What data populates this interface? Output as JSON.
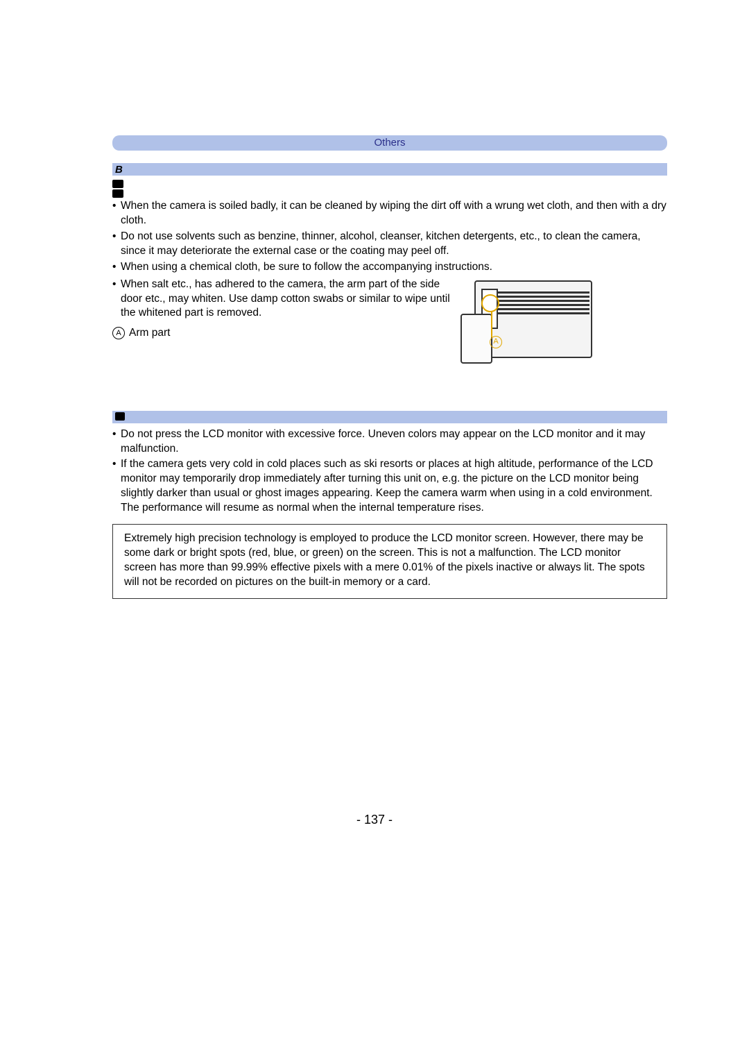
{
  "header": {
    "tab": "Others"
  },
  "section1": {
    "items": [
      "When the camera is soiled badly, it can be cleaned by wiping the dirt off with a wrung wet cloth, and then with a dry cloth.",
      "Do not use solvents such as benzine, thinner, alcohol, cleanser, kitchen detergents, etc., to clean the camera, since it may deteriorate the external case or the coating may peel off.",
      "When using a chemical cloth, be sure to follow the accompanying instructions."
    ],
    "salt_item": "When salt etc., has adhered to the camera, the arm part of the side door etc., may whiten. Use damp cotton swabs or similar to wipe until the whitened part is removed.",
    "arm_letter": "A",
    "arm_label": "Arm part",
    "diagram_callout": "A"
  },
  "section2": {
    "items": [
      "Do not press the LCD monitor with excessive force. Uneven colors may appear on the LCD monitor and it may malfunction.",
      "If the camera gets very cold in cold places such as ski resorts or places at high altitude, performance of the LCD monitor may temporarily drop immediately after turning this unit on, e.g. the picture on the LCD monitor being slightly darker than usual or ghost images appearing. Keep the camera warm when using in a cold environment. The performance will resume as normal when the internal temperature rises."
    ],
    "precision": "Extremely high precision technology is employed to produce the LCD monitor screen. However, there may be some dark or bright spots (red, blue, or green) on the screen. This is not a malfunction. The LCD monitor screen has more than 99.99% effective pixels with a mere 0.01% of the pixels inactive or always lit. The spots will not be recorded on pictures on the built-in memory or a card."
  },
  "page_number": "- 137 -",
  "colors": {
    "bar_bg": "#b0c1e8",
    "bar_text": "#2a2f8a",
    "callout": "#e2a800",
    "border": "#333333"
  }
}
